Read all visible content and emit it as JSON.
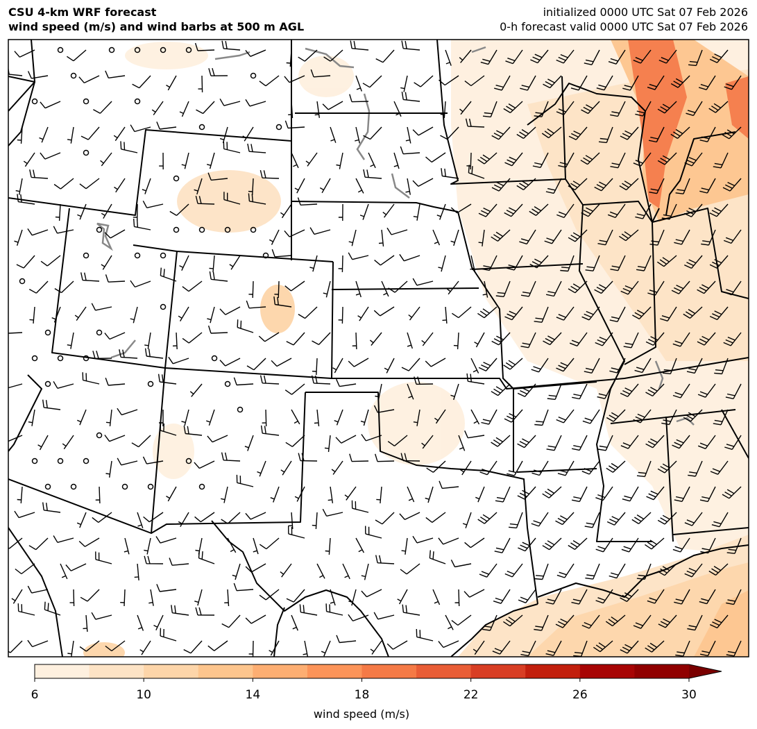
{
  "header": {
    "title": [
      "CSU 4-km WRF forecast",
      "wind speed (m/s) and wind barbs at 500 m AGL"
    ],
    "valid": [
      "initialized 0000 UTC Sat 07 Feb 2026",
      "0-h forecast valid 0000 UTC Sat 07 Feb 2026"
    ]
  },
  "colorbar": {
    "label": "wind speed (m/s)",
    "levels": [
      6,
      8,
      10,
      12,
      14,
      16,
      18,
      20,
      22,
      24,
      26,
      28,
      30
    ],
    "colors": [
      "#fef0df",
      "#fde3c5",
      "#fdd5a9",
      "#fdc58d",
      "#fdae72",
      "#fc9459",
      "#f57a46",
      "#e95d36",
      "#d83e24",
      "#c21f0d",
      "#a70404",
      "#900000"
    ],
    "extend_color": "#7a0000",
    "ticks": [
      6,
      10,
      14,
      18,
      22,
      26,
      30
    ]
  }
}
